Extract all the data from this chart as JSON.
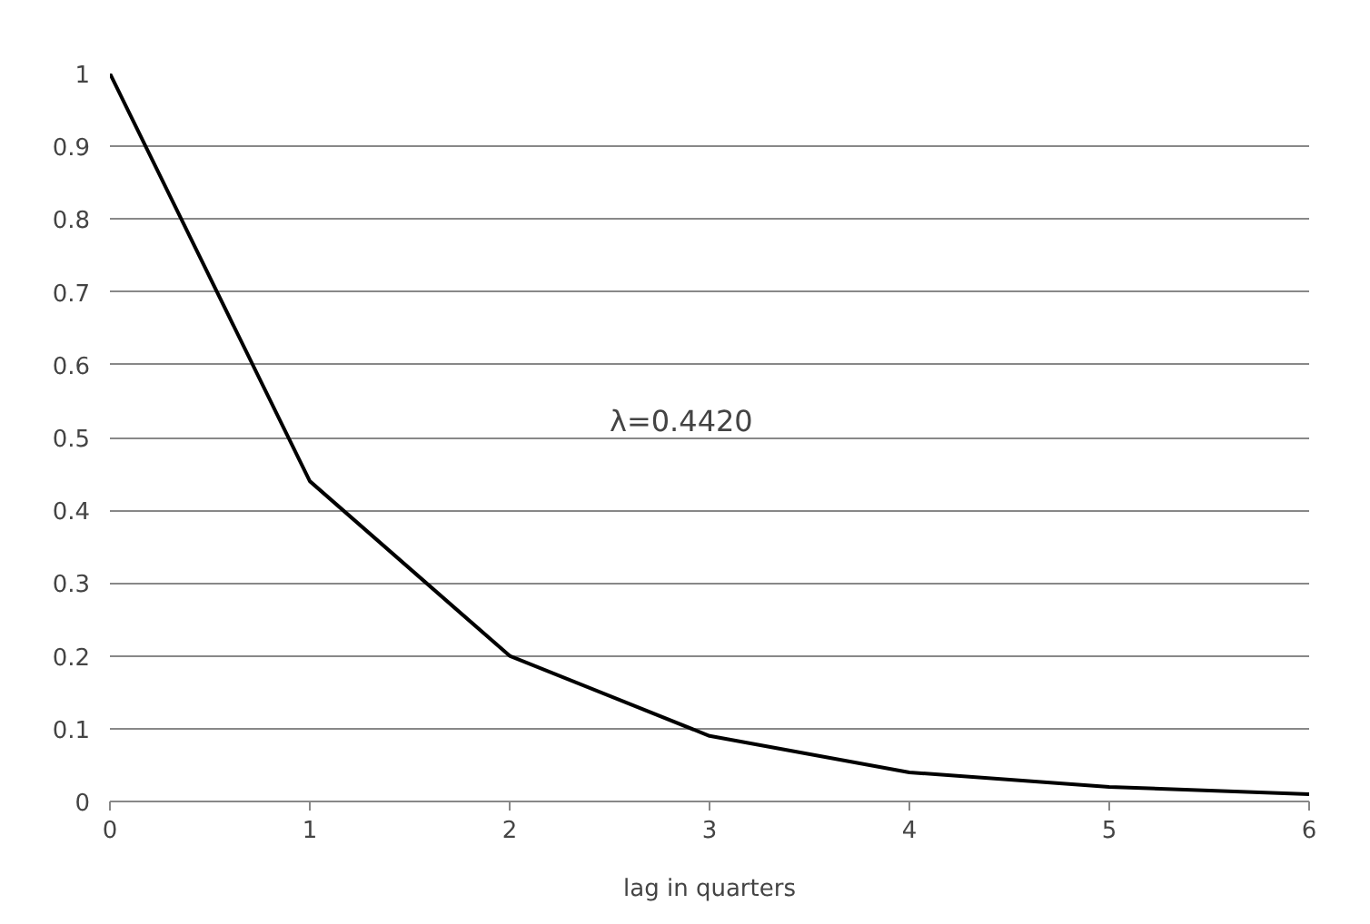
{
  "chart_data": {
    "type": "line",
    "xlabel": "lag in quarters",
    "annotations": [
      "λ=0.4420"
    ],
    "x": [
      0,
      1,
      2,
      3,
      4,
      5,
      6
    ],
    "series": [
      {
        "color": "#000000",
        "values": [
          1,
          0.44,
          0.2,
          0.09,
          0.04,
          0.02,
          0.01
        ]
      }
    ],
    "xlim": [
      0,
      6
    ],
    "xticks": [
      0,
      1,
      2,
      3,
      4,
      5,
      6
    ],
    "ylim": [
      0,
      1
    ],
    "yticks": [
      0,
      0.1,
      0.2,
      0.3,
      0.4,
      0.5,
      0.6,
      0.7,
      0.8,
      0.9,
      1
    ],
    "grid": "y",
    "marker": "none",
    "line_style": "solid"
  }
}
